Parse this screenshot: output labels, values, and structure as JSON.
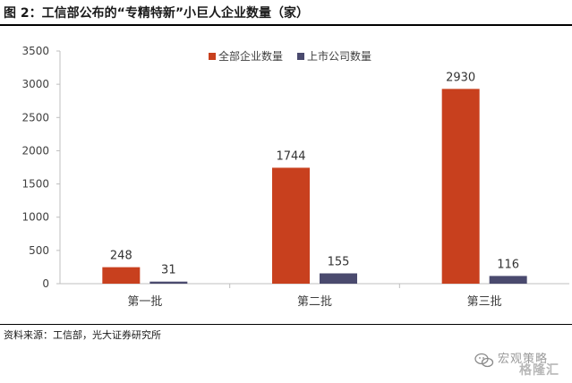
{
  "figure": {
    "title": "图 2：工信部公布的“专精特新”小巨人企业数量（家）",
    "source": "资料来源：工信部，光大证券研究所"
  },
  "watermark": {
    "line1": "宏观策略",
    "line2": "格隆汇",
    "icon": "wechat-icon"
  },
  "colors": {
    "series1": "#C8401E",
    "series2": "#4A4A6E",
    "axis": "#bfbfbf",
    "text": "#404040"
  },
  "chart_data": {
    "type": "bar",
    "categories": [
      "第一批",
      "第二批",
      "第三批"
    ],
    "series": [
      {
        "name": "全部企业数量",
        "values": [
          248,
          1744,
          2930
        ],
        "color": "#C8401E"
      },
      {
        "name": "上市公司数量",
        "values": [
          31,
          155,
          116
        ],
        "color": "#4A4A6E"
      }
    ],
    "ylim": [
      0,
      3500
    ],
    "yticks": [
      0,
      500,
      1000,
      1500,
      2000,
      2500,
      3000,
      3500
    ],
    "grid": false,
    "legend": "top-center",
    "data_labels": true
  }
}
